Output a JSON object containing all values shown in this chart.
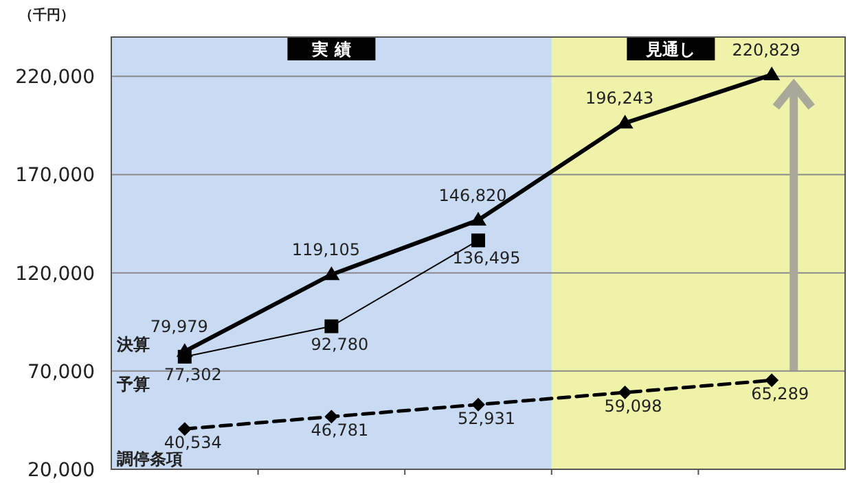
{
  "chart_data": {
    "type": "line",
    "ylabel": "（千円）",
    "categories": [
      null,
      null,
      null,
      null,
      null
    ],
    "series": [
      {
        "name": "決算",
        "color": "#000000",
        "marker": "triangle",
        "line_style": "solid",
        "values": [
          79979,
          119105,
          146820,
          196243,
          220829
        ],
        "value_labels": [
          "79,979",
          "119,105",
          "146,820",
          "196,243",
          "220,829"
        ]
      },
      {
        "name": "予算",
        "color": "#000000",
        "marker": "square",
        "line_style": "solid",
        "values": [
          77302,
          92780,
          136495,
          null,
          null
        ],
        "value_labels": [
          "77,302",
          "92,780",
          "136,495",
          null,
          null
        ]
      },
      {
        "name": "調停条項",
        "color": "#000000",
        "marker": "diamond",
        "line_style": "dashed",
        "values": [
          40534,
          46781,
          52931,
          59098,
          65289
        ],
        "value_labels": [
          "40,534",
          "46,781",
          "52,931",
          "59,098",
          "65,289"
        ]
      }
    ],
    "ylim": [
      20000,
      240000
    ],
    "yticks": [
      {
        "value": 20000,
        "label": "20,000"
      },
      {
        "value": 70000,
        "label": "70,000"
      },
      {
        "value": 120000,
        "label": "120,000"
      },
      {
        "value": 170000,
        "label": "170,000"
      },
      {
        "value": 220000,
        "label": "220,000"
      }
    ],
    "grid": "y",
    "legend": false,
    "annotations": [
      "実 績",
      "見通し"
    ]
  }
}
